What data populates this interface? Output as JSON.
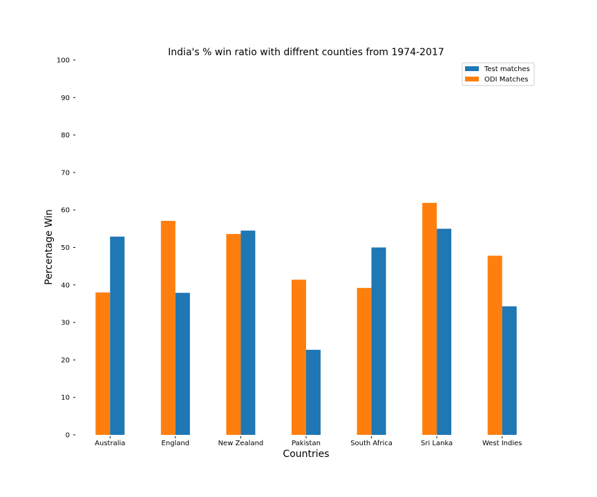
{
  "chart_data": {
    "type": "bar",
    "title": "India's % win ratio with diffrent counties from 1974-2017",
    "xlabel": "Countries",
    "ylabel": "Percentage Win",
    "ylim": [
      0,
      100
    ],
    "yticks": [
      0,
      10,
      20,
      30,
      40,
      50,
      60,
      70,
      80,
      90,
      100
    ],
    "grid": false,
    "legend_position": "top-right",
    "categories": [
      "Australia",
      "England",
      "New Zealand",
      "Pakistan",
      "South Africa",
      "Sri Lanka",
      "West Indies"
    ],
    "series": [
      {
        "name": "Test matches",
        "color": "#1f77b4",
        "values": [
          52.9,
          37.9,
          54.5,
          22.7,
          50.0,
          55.0,
          34.3
        ]
      },
      {
        "name": "ODI Matches",
        "color": "#ff7f0e",
        "values": [
          38.0,
          57.1,
          53.6,
          41.4,
          39.2,
          61.9,
          47.8
        ]
      }
    ]
  }
}
